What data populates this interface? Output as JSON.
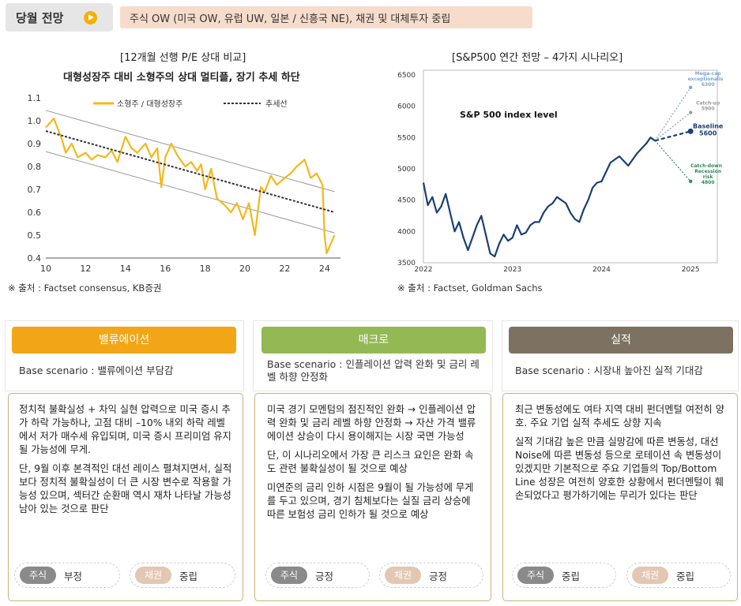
{
  "header": {
    "title": "당월 전망",
    "banner": "주식 OW (미국 OW, 유럽 UW, 일본 / 신흥국  NE), 채권 및 대체투자 중립"
  },
  "left_chart": {
    "title": "[12개월 선행 P/E 상대 비교]",
    "subtitle": "대형성장주 대비 소형주의 상대 멀티플, 장기 추세 하단",
    "source": "※ 출처 : Factset consensus, KB증권",
    "legend": [
      "소형주 / 대형성장주",
      "추세선"
    ],
    "y_ticks": [
      "1.1",
      "1.0",
      "0.9",
      "0.8",
      "0.7",
      "0.6",
      "0.5",
      "0.4"
    ],
    "x_ticks": [
      "10",
      "12",
      "14",
      "16",
      "18",
      "20",
      "22",
      "24"
    ],
    "colors": {
      "series": "#f3b81a",
      "trend": "#333333",
      "band": "#999999"
    }
  },
  "right_chart": {
    "title": "[S&P500 연간 전망 – 4가지 시나리오]",
    "inner_title": "S&P 500 index level",
    "source": "※ 출처 : Factset, Goldman Sachs",
    "y_ticks": [
      "6500",
      "6000",
      "5500",
      "5000",
      "4500",
      "4000",
      "3500"
    ],
    "x_ticks": [
      "2022",
      "2023",
      "2024",
      "2025"
    ],
    "scenarios": [
      {
        "label": "Mega-cap exceptionalism",
        "value": "6300"
      },
      {
        "label": "Catch-up",
        "value": "5900"
      },
      {
        "label": "Baseline",
        "value": "5600"
      },
      {
        "label": "Catch-down / Recession risk",
        "value": "4800"
      }
    ],
    "colors": {
      "series": "#1a3f73",
      "mega": "#7da6d8",
      "catchup": "#999999",
      "baseline": "#1a3f73",
      "recession": "#2e8b57"
    }
  },
  "chart_data": [
    {
      "type": "line",
      "title": "대형성장주 대비 소형주의 상대 멀티플, 장기 추세 하단",
      "x_range": [
        10,
        24.8
      ],
      "ylim": [
        0.4,
        1.1
      ],
      "series": [
        {
          "name": "소형주 / 대형성장주",
          "x": [
            10,
            10.4,
            10.8,
            11,
            11.3,
            11.6,
            12,
            12.3,
            12.6,
            13,
            13.3,
            13.6,
            14,
            14.3,
            14.6,
            15,
            15.3,
            15.6,
            15.8,
            16,
            16.3,
            16.6,
            17,
            17.3,
            17.6,
            17.8,
            18,
            18.3,
            18.6,
            19,
            19.3,
            19.6,
            19.9,
            20.2,
            20.5,
            20.8,
            21,
            21.3,
            21.6,
            22,
            22.3,
            22.6,
            23,
            23.3,
            23.6,
            23.9,
            24,
            24.1,
            24.3,
            24.5
          ],
          "values": [
            0.97,
            1.01,
            0.92,
            0.86,
            0.9,
            0.84,
            0.86,
            0.83,
            0.85,
            0.84,
            0.87,
            0.82,
            0.93,
            0.88,
            0.86,
            0.9,
            0.84,
            0.88,
            0.71,
            0.84,
            0.9,
            0.85,
            0.8,
            0.82,
            0.78,
            0.81,
            0.7,
            0.79,
            0.66,
            0.63,
            0.6,
            0.64,
            0.57,
            0.64,
            0.5,
            0.71,
            0.69,
            0.76,
            0.72,
            0.75,
            0.77,
            0.8,
            0.83,
            0.75,
            0.77,
            0.72,
            0.5,
            0.42,
            0.46,
            0.5
          ]
        },
        {
          "name": "추세선",
          "x": [
            10,
            24.5
          ],
          "values": [
            0.955,
            0.6
          ]
        }
      ],
      "legend_position": "top"
    },
    {
      "type": "line",
      "title": "S&P 500 index level",
      "x_range": [
        2022.0,
        2025.3
      ],
      "ylim": [
        3500,
        6500
      ],
      "series": [
        {
          "name": "S&P 500",
          "x": [
            2022.0,
            2022.05,
            2022.1,
            2022.15,
            2022.2,
            2022.25,
            2022.3,
            2022.35,
            2022.4,
            2022.45,
            2022.5,
            2022.55,
            2022.6,
            2022.65,
            2022.7,
            2022.75,
            2022.8,
            2022.85,
            2022.9,
            2022.95,
            2023.0,
            2023.05,
            2023.1,
            2023.15,
            2023.2,
            2023.25,
            2023.3,
            2023.35,
            2023.4,
            2023.45,
            2023.5,
            2023.55,
            2023.6,
            2023.65,
            2023.7,
            2023.75,
            2023.8,
            2023.85,
            2023.9,
            2023.95,
            2024.0,
            2024.1,
            2024.2,
            2024.3,
            2024.4,
            2024.5,
            2024.55,
            2024.6
          ],
          "values": [
            4780,
            4420,
            4550,
            4300,
            4400,
            4600,
            4300,
            4000,
            4150,
            3900,
            3700,
            3900,
            4100,
            4250,
            3950,
            3650,
            3600,
            3800,
            3950,
            3850,
            3900,
            4100,
            3950,
            3980,
            4100,
            4150,
            4150,
            4300,
            4400,
            4450,
            4550,
            4500,
            4450,
            4300,
            4200,
            4150,
            4350,
            4500,
            4700,
            4780,
            4800,
            5100,
            5200,
            5050,
            5250,
            5400,
            5500,
            5450
          ]
        }
      ],
      "scenarios": [
        {
          "name": "Mega-cap exceptionalism",
          "x": [
            2024.6,
            2025.0
          ],
          "values": [
            5450,
            6300
          ]
        },
        {
          "name": "Catch-up",
          "x": [
            2024.6,
            2025.0
          ],
          "values": [
            5450,
            5900
          ]
        },
        {
          "name": "Baseline",
          "x": [
            2024.6,
            2025.0
          ],
          "values": [
            5450,
            5600
          ]
        },
        {
          "name": "Catch-down / Recession risk",
          "x": [
            2024.6,
            2025.0
          ],
          "values": [
            5450,
            4800
          ]
        }
      ]
    }
  ],
  "cards": [
    {
      "header": "밸류에이션",
      "color": "#f2a516",
      "scenario": "Base scenario : 밸류에이션 부담감",
      "paragraphs": [
        "정치적 불확실성 + 차익 실현 압력으로 미국 증시 추가 하락 가능하나, 고점 대비 –10% 내외 하락 레벨에서 저가 매수세 유입되며, 미국 증시 프리미엄 유지될 가능성에 무게.",
        "단, 9월 이후 본격적인 대선 레이스 펼쳐지면서, 실적 보다 정치적 불확실성이 더 큰 시장 변수로 작용할 가능성 있으며, 섹터간 순환매 역시 재차 나타날 가능성 남아 있는 것으로 판단"
      ],
      "stock_label": "주식",
      "stock_value": "부정",
      "bond_label": "채권",
      "bond_value": "중립"
    },
    {
      "header": "매크로",
      "color": "#93b954",
      "scenario": "Base scenario : 인플레이션 압력 완화 및 금리 레벨 하향 안정화",
      "paragraphs": [
        "미국 경기 모멘텀의 점진적인 완화 → 인플레이션 압력 완화 및 금리 레벨 하향 안정화 → 자산 가격 밸류에이션 상승이 다시 용이해지는 시장 국면 가능성",
        "단, 이 시나리오에서 가장 큰 리스크 요인은 완화 속도 관련 불확실성이 될 것으로 예상",
        "미연준의 금리 인하 시점은 9월이 될 가능성에 무게를 두고 있으며, 경기 침체보다는 실질 금리 상승에 따른 보험성 금리 인하가 될 것으로 예상"
      ],
      "stock_label": "주식",
      "stock_value": "긍정",
      "bond_label": "채권",
      "bond_value": "긍정"
    },
    {
      "header": "실적",
      "color": "#7d7162",
      "scenario": "Base scenario : 시장내 높아진 실적 기대감",
      "paragraphs": [
        "최근 변동성에도 여타 지역 대비 펀더멘털 여전히 양호. 주요 기업 실적 추세도 상향 지속",
        "실적 기대감 높은 만큼 실망감에 따른 변동성, 대선 Noise에 따른 변동성 등으로 로테이션 속 변동성이 있겠지만 기본적으로 주요 기업들의 Top/Bottom Line 성장은 여전히 양호한 상황에서 펀더멘털이 훼손되었다고 평가하기에는 무리가 있다는 판단"
      ],
      "stock_label": "주식",
      "stock_value": "중립",
      "bond_label": "채권",
      "bond_value": "중립"
    }
  ],
  "pill_colors": {
    "stock": "#8a8a8a",
    "bond": "#e3c7b2"
  },
  "card_border": "#c9b27a"
}
